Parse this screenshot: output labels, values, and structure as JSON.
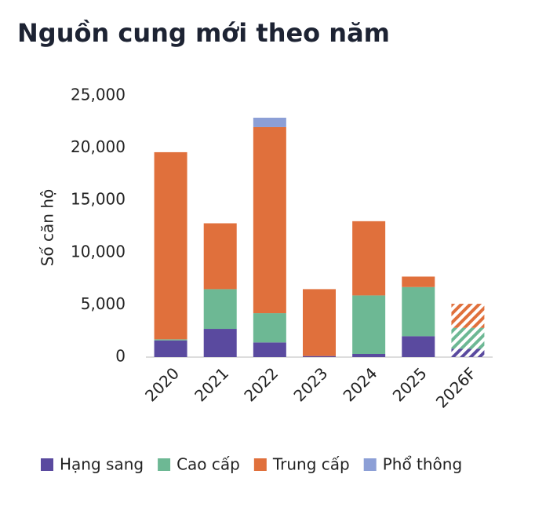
{
  "chart_data": {
    "type": "stacked_bar",
    "title": "Nguồn cung mới theo năm",
    "y_label": "Số căn hộ",
    "categories": [
      "2020",
      "2021",
      "2022",
      "2023",
      "2024",
      "2025",
      "2026F"
    ],
    "hatched": [
      false,
      false,
      false,
      false,
      false,
      false,
      true
    ],
    "series": [
      {
        "name": "Hạng sang",
        "color": "#5a4a9f",
        "values": [
          1600,
          2700,
          1400,
          100,
          300,
          2000,
          800
        ]
      },
      {
        "name": "Cao cấp",
        "color": "#6db894",
        "values": [
          100,
          3800,
          2800,
          0,
          5600,
          4700,
          2000
        ]
      },
      {
        "name": "Trung cấp",
        "color": "#e0703c",
        "values": [
          17900,
          6300,
          17800,
          6400,
          7100,
          1000,
          2300
        ]
      },
      {
        "name": "Phổ thông",
        "color": "#8c9fd6",
        "values": [
          0,
          0,
          900,
          0,
          0,
          0,
          0
        ]
      }
    ],
    "ylim": [
      0,
      25000
    ],
    "yticks": [
      0,
      {
        "value": 5000,
        "label": "5,000"
      },
      {
        "value": 10000,
        "label": "10,000"
      },
      {
        "value": 15000,
        "label": "15,000"
      },
      {
        "value": 20000,
        "label": "20,000"
      },
      {
        "value": 25000,
        "label": "25,000"
      }
    ]
  }
}
